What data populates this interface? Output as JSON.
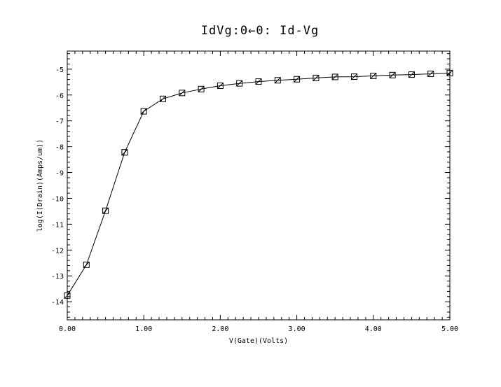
{
  "chart_data": {
    "type": "line",
    "title": "IdVg:0←0: Id-Vg",
    "xlabel": "V(Gate)(Volts)",
    "ylabel": "log(I(Drain)(Amps/um))",
    "xlim": [
      0,
      5
    ],
    "ylim": [
      -14.7,
      -4.3
    ],
    "x_ticks": [
      0,
      1,
      2,
      3,
      4,
      5
    ],
    "x_tick_labels": [
      "0.00",
      "1.00",
      "2.00",
      "3.00",
      "4.00",
      "5.00"
    ],
    "y_ticks": [
      -5,
      -6,
      -7,
      -8,
      -9,
      -10,
      -11,
      -12,
      -13,
      -14
    ],
    "y_tick_labels": [
      "-5",
      "-6",
      "-7",
      "-8",
      "-9",
      "-10",
      "-11",
      "-12",
      "-13",
      "-14"
    ],
    "grid": false,
    "marker": "square",
    "x": [
      0,
      0.25,
      0.5,
      0.75,
      1.0,
      1.25,
      1.5,
      1.75,
      2.0,
      2.25,
      2.5,
      2.75,
      3.0,
      3.25,
      3.5,
      3.75,
      4.0,
      4.25,
      4.5,
      4.75,
      5.0
    ],
    "y": [
      -13.76,
      -12.57,
      -10.48,
      -8.22,
      -6.63,
      -6.15,
      -5.92,
      -5.77,
      -5.64,
      -5.55,
      -5.48,
      -5.43,
      -5.39,
      -5.34,
      -5.3,
      -5.29,
      -5.26,
      -5.23,
      -5.21,
      -5.18,
      -5.15
    ]
  }
}
